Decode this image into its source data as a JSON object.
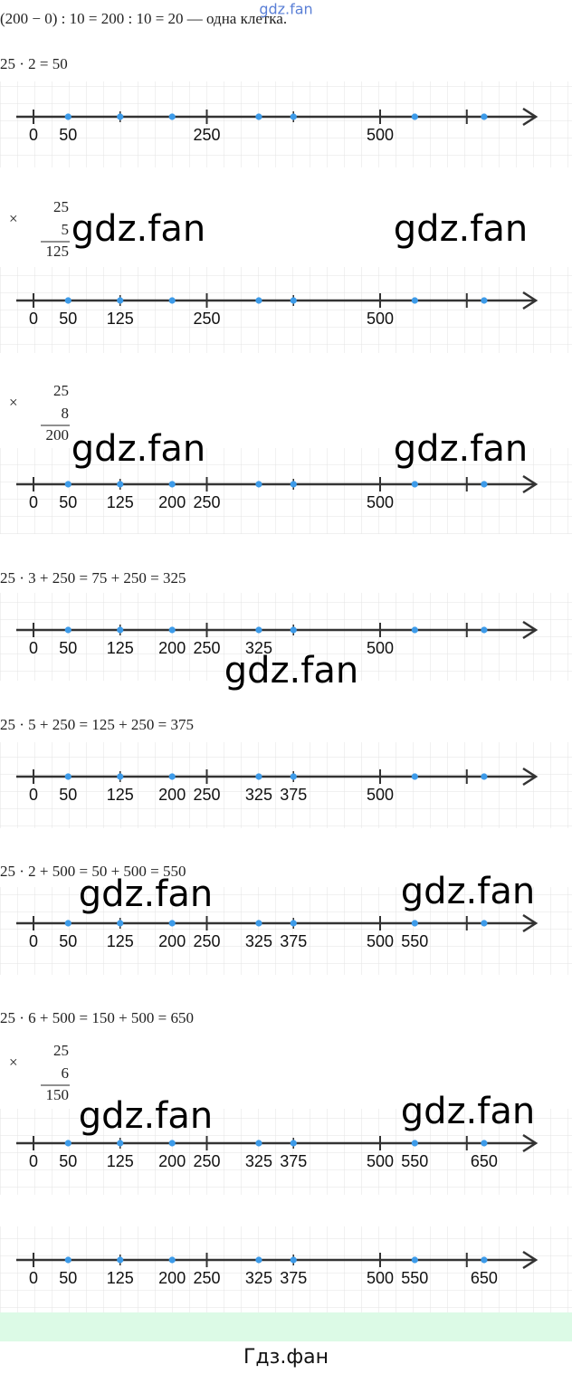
{
  "header": {
    "text": "(200 − 0) : 10 = 200 : 10 = 20 — одна клетка.",
    "watermark": "gdz.fan"
  },
  "sections": [
    {
      "equation": "25 · 2 = 50",
      "labels": [
        "0",
        "50",
        "250",
        "500"
      ]
    },
    {
      "column": {
        "sign": "×",
        "top": "25",
        "multiplier": "5",
        "result": "125"
      },
      "labels": [
        "0",
        "50",
        "125",
        "250",
        "500"
      ]
    },
    {
      "column": {
        "sign": "×",
        "top": "25",
        "multiplier": "8",
        "result": "200"
      },
      "labels": [
        "0",
        "50",
        "125",
        "200",
        "250",
        "500"
      ]
    },
    {
      "equation": "25 · 3 + 250 = 75 + 250 = 325",
      "labels": [
        "0",
        "50",
        "125",
        "200",
        "250",
        "325",
        "500"
      ]
    },
    {
      "equation": "25 · 5 + 250 = 125 + 250 = 375",
      "labels": [
        "0",
        "50",
        "125",
        "200",
        "250",
        "325",
        "375",
        "500"
      ]
    },
    {
      "equation": "25 · 2 + 500 = 50 + 500 = 550",
      "labels": [
        "0",
        "50",
        "125",
        "200",
        "250",
        "325",
        "375",
        "500",
        "550"
      ]
    },
    {
      "equation": "25 · 6 + 500 = 150 + 500 = 650",
      "column": {
        "sign": "×",
        "top": "25",
        "multiplier": "6",
        "result": "150"
      },
      "labels": [
        "0",
        "50",
        "125",
        "200",
        "250",
        "325",
        "375",
        "500",
        "550",
        "650"
      ]
    },
    {
      "labels": [
        "0",
        "50",
        "125",
        "200",
        "250",
        "325",
        "375",
        "500",
        "550",
        "650"
      ]
    }
  ],
  "watermarks": [
    "gdz.fan",
    "gdz.fan",
    "gdz.fan",
    "gdz.fan",
    "gdz.fan",
    "gdz.fan",
    "gdz.fan",
    "gdz.fan",
    "gdz.fan"
  ],
  "footer": "Гдз.фан"
}
